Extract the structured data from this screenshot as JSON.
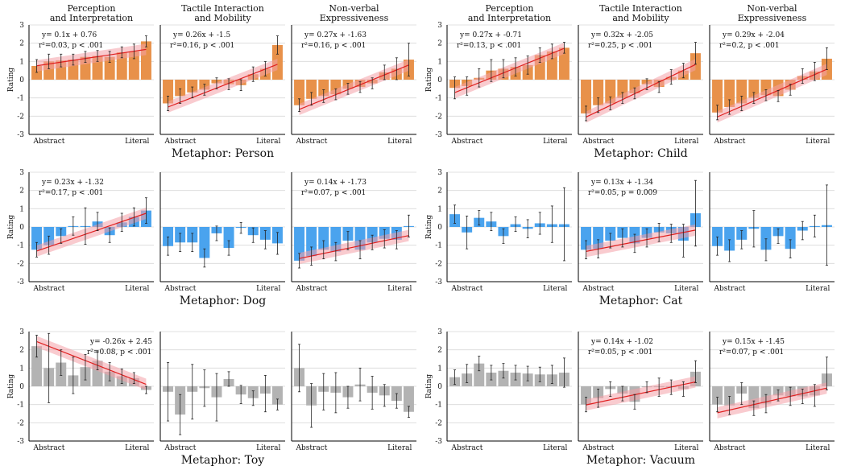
{
  "colors": {
    "person": "#e8914a",
    "dog": "#4aa3ee",
    "toy": "#b3b3b3",
    "fit": "#e02020",
    "band": "#f4a0a8"
  },
  "chart_data": [
    {
      "type": "bar",
      "group": "Metaphor: Person",
      "color_key": "person",
      "ylabel": "Rating",
      "ylim": [
        -3,
        3
      ],
      "yticks": [
        "-3",
        "-2",
        "-1",
        "0",
        "1",
        "2",
        "3"
      ],
      "xtick_left": "Abstract",
      "xtick_right": "Literal",
      "panels": [
        {
          "title_lines": [
            "Perception",
            "and Interpretation"
          ],
          "values": [
            0.75,
            1.0,
            1.05,
            1.1,
            1.25,
            1.3,
            1.25,
            1.5,
            1.55,
            2.1
          ],
          "err": [
            0.35,
            0.4,
            0.35,
            0.3,
            0.3,
            0.3,
            0.3,
            0.3,
            0.4,
            0.3
          ],
          "fit": [
            0.1,
            0.76
          ],
          "eq": "y= 0.1x + 0.76",
          "stat": "r²=0.03, p < .001"
        },
        {
          "title_lines": [
            "Tactile Interaction",
            "and Mobility"
          ],
          "values": [
            -1.3,
            -0.9,
            -0.7,
            -0.55,
            -0.2,
            -0.25,
            -0.3,
            0.3,
            0.6,
            1.9
          ],
          "err": [
            0.4,
            0.4,
            0.3,
            0.3,
            0.3,
            0.3,
            0.3,
            0.4,
            0.4,
            0.5
          ],
          "fit": [
            0.26,
            -1.5
          ],
          "eq": "y= 0.26x + -1.5",
          "stat": "r²=0.16, p < .001"
        },
        {
          "title_lines": [
            "Non-verbal",
            "Expressiveness"
          ],
          "values": [
            -1.4,
            -1.05,
            -0.9,
            -0.8,
            -0.5,
            -0.4,
            -0.2,
            0.4,
            0.6,
            1.1
          ],
          "err": [
            0.35,
            0.35,
            0.35,
            0.3,
            0.3,
            0.3,
            0.3,
            0.4,
            0.6,
            0.9
          ],
          "fit": [
            0.27,
            -1.63
          ],
          "eq": "y= 0.27x + -1.63",
          "stat": "r²=0.16, p < .001"
        }
      ]
    },
    {
      "type": "bar",
      "group": "Metaphor: Child",
      "color_key": "person",
      "ylabel": "Rating",
      "ylim": [
        -3,
        3
      ],
      "yticks": [
        "-3",
        "-2",
        "-1",
        "0",
        "1",
        "2",
        "3"
      ],
      "xtick_left": "Abstract",
      "xtick_right": "Literal",
      "panels": [
        {
          "title_lines": [
            "Perception",
            "and Interpretation"
          ],
          "values": [
            -0.45,
            -0.35,
            0.1,
            0.5,
            0.6,
            0.7,
            0.8,
            1.35,
            1.55,
            1.75
          ],
          "err": [
            0.6,
            0.5,
            0.5,
            0.6,
            0.5,
            0.5,
            0.5,
            0.4,
            0.4,
            0.3
          ],
          "fit": [
            0.27,
            -0.71
          ],
          "eq": "y= 0.27x + -0.71",
          "stat": "r²=0.13, p < .001"
        },
        {
          "title_lines": [
            "Tactile Interaction",
            "and Mobility"
          ],
          "values": [
            -1.85,
            -1.4,
            -1.3,
            -1.0,
            -0.75,
            -0.25,
            -0.4,
            0.15,
            0.5,
            1.45
          ],
          "err": [
            0.4,
            0.4,
            0.35,
            0.3,
            0.3,
            0.3,
            0.3,
            0.4,
            0.4,
            0.6
          ],
          "fit": [
            0.32,
            -2.05
          ],
          "eq": "y= 0.32x + -2.05",
          "stat": "r²=0.25, p < .001"
        },
        {
          "title_lines": [
            "Non-verbal",
            "Expressiveness"
          ],
          "values": [
            -1.8,
            -1.5,
            -1.3,
            -1.0,
            -0.85,
            -0.9,
            -0.55,
            0.2,
            0.45,
            1.15
          ],
          "err": [
            0.4,
            0.4,
            0.4,
            0.3,
            0.3,
            0.3,
            0.3,
            0.4,
            0.5,
            0.6
          ],
          "fit": [
            0.29,
            -2.04
          ],
          "eq": "y= 0.29x + -2.04",
          "stat": "r²=0.2, p < .001"
        }
      ]
    },
    {
      "type": "bar",
      "group": "Metaphor: Dog",
      "color_key": "dog",
      "ylabel": "Rating",
      "ylim": [
        -3,
        3
      ],
      "yticks": [
        "-3",
        "-2",
        "-1",
        "0",
        "1",
        "2",
        "3"
      ],
      "xtick_left": "Abstract",
      "xtick_right": "Literal",
      "panels": [
        {
          "title_lines": [],
          "values": [
            -1.25,
            -1.0,
            -0.5,
            0.05,
            0.05,
            0.3,
            -0.45,
            0.25,
            0.55,
            0.9
          ],
          "err": [
            0.4,
            0.5,
            0.4,
            0.5,
            1.0,
            0.5,
            0.4,
            0.5,
            0.5,
            0.7
          ],
          "fit": [
            0.23,
            -1.32
          ],
          "eq": "y= 0.23x + -1.32",
          "stat": "r²=0.17, p < .001"
        },
        {
          "title_lines": [],
          "values": [
            -1.05,
            -0.85,
            -0.85,
            -1.7,
            -0.35,
            -1.15,
            -0.05,
            -0.45,
            -0.7,
            -0.9
          ],
          "err": [
            0.5,
            0.5,
            0.5,
            0.5,
            0.4,
            0.4,
            0.3,
            0.4,
            0.5,
            0.6
          ],
          "fit": null,
          "eq": "",
          "stat": ""
        },
        {
          "title_lines": [],
          "values": [
            -1.85,
            -1.6,
            -1.25,
            -1.35,
            -0.75,
            -1.25,
            -0.85,
            -0.65,
            -0.7,
            0.05
          ],
          "err": [
            0.4,
            0.5,
            0.5,
            0.5,
            0.5,
            0.5,
            0.4,
            0.5,
            0.5,
            0.6
          ],
          "fit": [
            0.14,
            -1.73
          ],
          "eq": "y= 0.14x + -1.73",
          "stat": "r²=0.07, p < .001"
        }
      ]
    },
    {
      "type": "bar",
      "group": "Metaphor: Cat",
      "color_key": "dog",
      "ylabel": "Rating",
      "ylim": [
        -3,
        3
      ],
      "yticks": [
        "-3",
        "-2",
        "-1",
        "0",
        "1",
        "2",
        "3"
      ],
      "xtick_left": "Abstract",
      "xtick_right": "Literal",
      "panels": [
        {
          "title_lines": [],
          "values": [
            0.7,
            -0.3,
            0.5,
            0.3,
            -0.5,
            0.15,
            -0.1,
            0.2,
            0.15,
            0.15
          ],
          "err": [
            0.5,
            0.9,
            0.4,
            0.5,
            0.4,
            0.4,
            0.5,
            0.6,
            1.0,
            2.0
          ],
          "fit": null,
          "eq": "",
          "stat": ""
        },
        {
          "title_lines": [],
          "values": [
            -1.25,
            -1.2,
            -0.75,
            -0.6,
            -0.9,
            -0.6,
            -0.3,
            -0.35,
            -0.75,
            0.75
          ],
          "err": [
            0.5,
            0.5,
            0.4,
            0.5,
            0.5,
            0.5,
            0.5,
            0.5,
            0.9,
            1.8
          ],
          "fit": [
            0.13,
            -1.34
          ],
          "eq": "y= 0.13x + -1.34",
          "stat": "r²=0.05, p = 0.009"
        },
        {
          "title_lines": [],
          "values": [
            -1.05,
            -1.3,
            -0.7,
            -0.1,
            -1.25,
            -0.5,
            -1.2,
            -0.2,
            0.05,
            0.1
          ],
          "err": [
            0.5,
            0.6,
            0.5,
            1.0,
            0.6,
            0.4,
            0.5,
            0.5,
            0.6,
            2.2
          ],
          "fit": null,
          "eq": "",
          "stat": ""
        }
      ]
    },
    {
      "type": "bar",
      "group": "Metaphor: Toy",
      "color_key": "toy",
      "ylabel": "Rating",
      "ylim": [
        -3,
        3
      ],
      "yticks": [
        "-3",
        "-2",
        "-1",
        "0",
        "1",
        "2",
        "3"
      ],
      "xtick_left": "Abstract",
      "xtick_right": "Literal",
      "panels": [
        {
          "title_lines": [],
          "values": [
            2.2,
            1.0,
            1.3,
            0.6,
            1.05,
            1.4,
            0.8,
            0.55,
            0.45,
            -0.2
          ],
          "err": [
            0.6,
            1.9,
            0.7,
            1.0,
            0.7,
            0.5,
            0.5,
            0.4,
            0.3,
            0.2
          ],
          "fit": [
            -0.26,
            2.45
          ],
          "eq": "y= -0.26x + 2.45",
          "stat": "r²=0.08, p < .001"
        },
        {
          "title_lines": [],
          "values": [
            -0.3,
            -1.55,
            -0.3,
            -0.1,
            -0.6,
            0.4,
            -0.45,
            -0.65,
            -0.4,
            -1.0
          ],
          "err": [
            1.6,
            1.1,
            1.5,
            1.0,
            1.3,
            0.4,
            0.5,
            0.4,
            1.0,
            0.3
          ],
          "fit": null,
          "eq": "",
          "stat": ""
        },
        {
          "title_lines": [],
          "values": [
            1.0,
            -1.05,
            -0.3,
            -0.35,
            -0.6,
            0.1,
            -0.35,
            -0.5,
            -0.8,
            -1.4
          ],
          "err": [
            1.3,
            1.2,
            1.0,
            1.1,
            0.6,
            0.9,
            0.9,
            0.6,
            0.4,
            0.3
          ],
          "fit": null,
          "eq": "",
          "stat": ""
        }
      ]
    },
    {
      "type": "bar",
      "group": "Metaphor: Vacuum",
      "color_key": "toy",
      "ylabel": "Rating",
      "ylim": [
        -3,
        3
      ],
      "yticks": [
        "-3",
        "-2",
        "-1",
        "0",
        "1",
        "2",
        "3"
      ],
      "xtick_left": "Abstract",
      "xtick_right": "Literal",
      "panels": [
        {
          "title_lines": [],
          "values": [
            0.5,
            0.7,
            1.25,
            0.75,
            0.85,
            0.75,
            0.7,
            0.65,
            0.65,
            0.75
          ],
          "err": [
            0.4,
            0.5,
            0.4,
            0.4,
            0.4,
            0.4,
            0.4,
            0.4,
            0.5,
            0.8
          ],
          "fit": null,
          "eq": "",
          "stat": ""
        },
        {
          "title_lines": [],
          "values": [
            -1.0,
            -0.65,
            -0.15,
            -0.4,
            -0.85,
            -0.05,
            -0.05,
            -0.05,
            -0.15,
            0.8
          ],
          "err": [
            0.4,
            0.5,
            0.4,
            0.4,
            0.4,
            0.3,
            0.5,
            0.4,
            0.4,
            0.6
          ],
          "fit": [
            0.14,
            -1.02
          ],
          "eq": "y= 0.14x + -1.02",
          "stat": "r²=0.05, p < .001"
        },
        {
          "title_lines": [],
          "values": [
            -1.0,
            -1.05,
            -0.4,
            -1.2,
            -0.95,
            -0.5,
            -0.55,
            -0.55,
            -0.5,
            0.7
          ],
          "err": [
            0.4,
            0.5,
            0.6,
            0.4,
            0.5,
            0.3,
            0.5,
            0.4,
            0.6,
            0.9
          ],
          "fit": [
            0.15,
            -1.45
          ],
          "eq": "y= 0.15x + -1.45",
          "stat": "r²=0.07, p < .001"
        }
      ]
    }
  ]
}
